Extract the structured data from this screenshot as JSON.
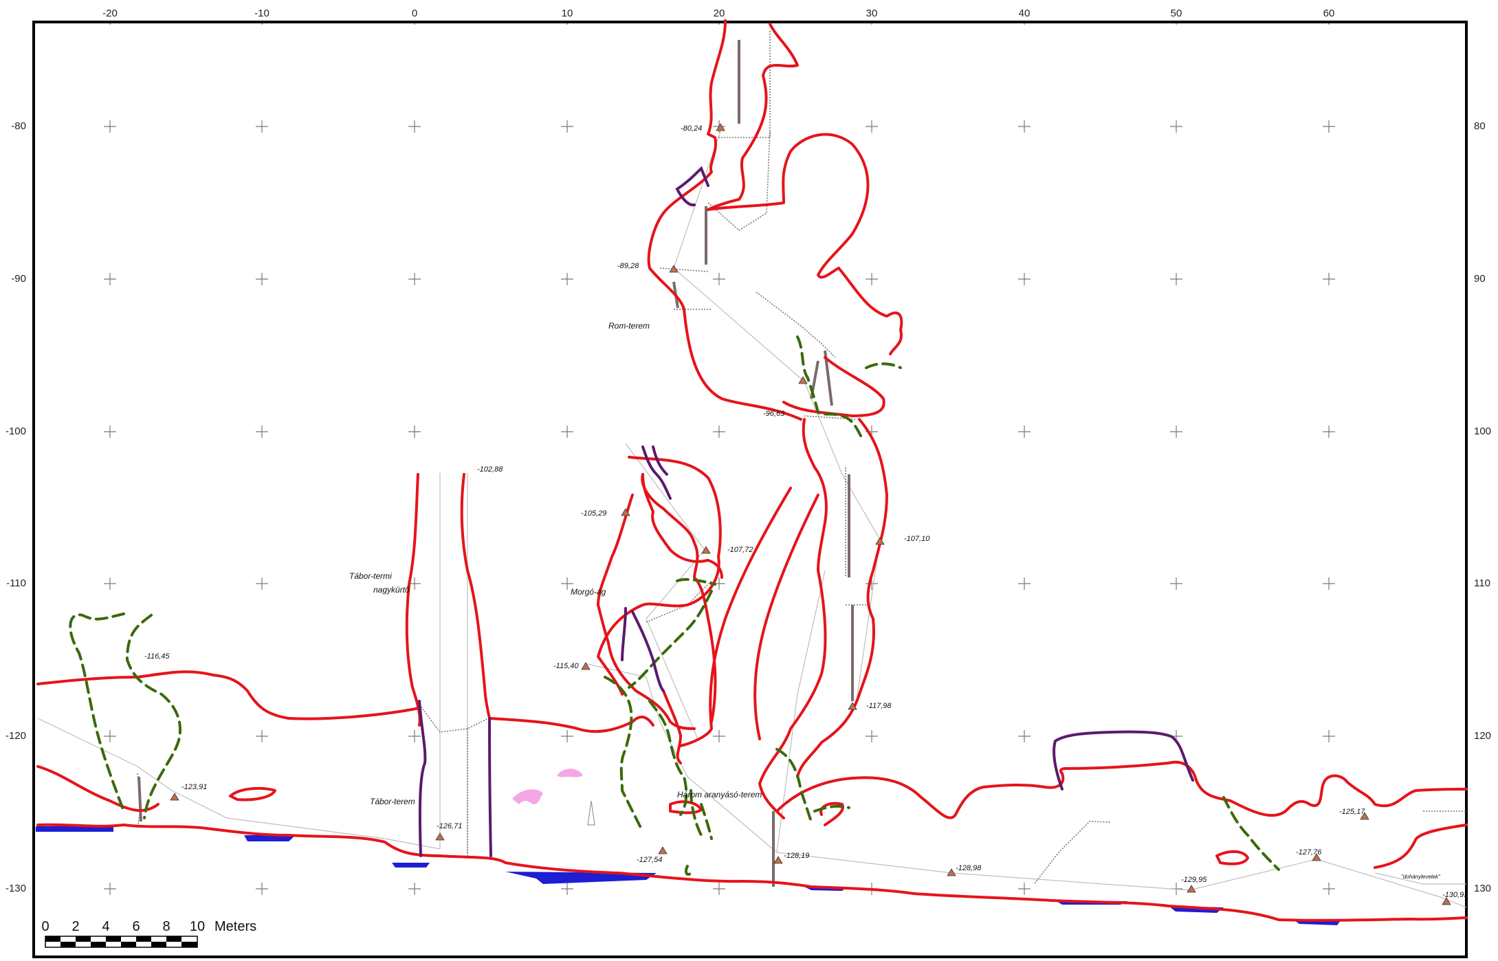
{
  "map": {
    "x_ticks": [
      "-20",
      "-10",
      "0",
      "10",
      "20",
      "30",
      "40",
      "50",
      "60"
    ],
    "y_ticks": [
      "-80",
      "-90",
      "-100",
      "-110",
      "-120",
      "-130"
    ],
    "y_ticks_right": [
      "80",
      "90",
      "100",
      "110",
      "120",
      "130"
    ],
    "colors": {
      "wall": "#e5141a",
      "wall_dashed": "#3a6a0c",
      "wall_purple": "#5b1a6e",
      "water": "#1e1ed2",
      "survey_line": "#bdbdbd",
      "station": "#c0704a",
      "pink_feature": "#f4a6e6"
    }
  },
  "labels": {
    "rom_terem": "Rom-terem",
    "tabor_termi": "Tábor-termi",
    "nagykurto": "nagykürtő",
    "morgo_ag": "Morgó-ág",
    "tabor_terem": "Tábor-terem",
    "harom": "Három aranyásó-terem",
    "dohany": "\"dohánylevelek\""
  },
  "stations": [
    {
      "id": "s1",
      "label": "-80,24"
    },
    {
      "id": "s2",
      "label": "-89,28"
    },
    {
      "id": "s3",
      "label": "-96,63"
    },
    {
      "id": "s4",
      "label": "-102,88"
    },
    {
      "id": "s5",
      "label": "-105,29"
    },
    {
      "id": "s6",
      "label": "-107,72"
    },
    {
      "id": "s7",
      "label": "-107,10"
    },
    {
      "id": "s8",
      "label": "-115,40"
    },
    {
      "id": "s9",
      "label": "-116,45"
    },
    {
      "id": "s10",
      "label": "-117,98"
    },
    {
      "id": "s11",
      "label": "-123,91"
    },
    {
      "id": "s12",
      "label": "-126,71"
    },
    {
      "id": "s13",
      "label": "-127,54"
    },
    {
      "id": "s14",
      "label": "-128,19"
    },
    {
      "id": "s15",
      "label": "-128,98"
    },
    {
      "id": "s16",
      "label": "-129,95"
    },
    {
      "id": "s17",
      "label": "-125,17"
    },
    {
      "id": "s18",
      "label": "-127,76"
    },
    {
      "id": "s19",
      "label": "-130,93"
    }
  ],
  "scale_bar": {
    "ticks": [
      "0",
      "2",
      "4",
      "6",
      "8",
      "10"
    ],
    "unit": "Meters"
  }
}
